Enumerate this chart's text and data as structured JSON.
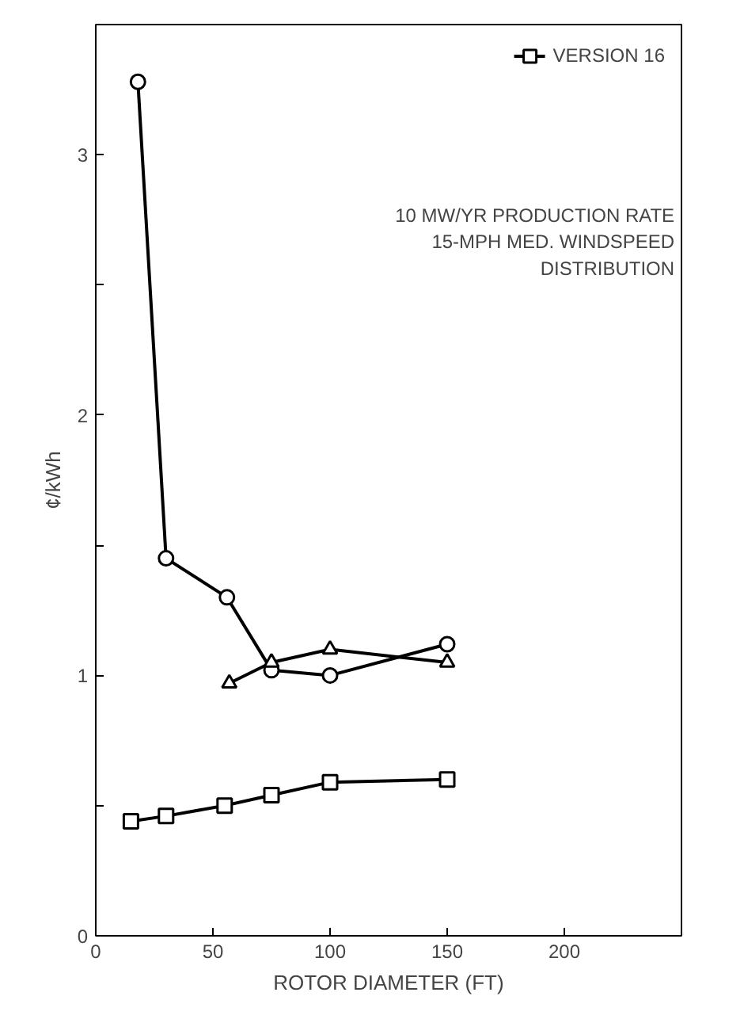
{
  "chart_data": {
    "type": "line",
    "xlabel": "ROTOR DIAMETER (FT)",
    "ylabel": "¢/kWh",
    "xlim": [
      0,
      250
    ],
    "ylim": [
      0,
      3.5
    ],
    "xticks": [
      0,
      50,
      100,
      150,
      200
    ],
    "yticks": [
      0,
      {
        "value": 0.5,
        "label": null
      },
      1,
      {
        "value": 1.5,
        "label": null
      },
      2,
      {
        "value": 2.5,
        "label": null
      },
      3
    ],
    "grid": false,
    "legend": "top right",
    "line_style": "solid",
    "series": [
      {
        "color": "#000000",
        "marker": "circle",
        "x": [
          18,
          30,
          56,
          75,
          100,
          150
        ],
        "values": [
          3.28,
          1.45,
          1.3,
          1.02,
          1.0,
          1.12
        ]
      },
      {
        "color": "#000000",
        "marker": "triangle",
        "x": [
          57,
          75,
          100,
          150
        ],
        "values": [
          0.97,
          1.05,
          1.1,
          1.05
        ]
      },
      {
        "name": "VERSION 16",
        "color": "#000000",
        "marker": "square",
        "x": [
          15,
          30,
          55,
          75,
          100,
          150
        ],
        "values": [
          0.44,
          0.46,
          0.5,
          0.54,
          0.59,
          0.6
        ]
      }
    ],
    "annotations": [
      {
        "text": "10 MW/YR PRODUCTION RATE\n15-MPH MED. WINDSPEED\nDISTRIBUTION"
      }
    ]
  }
}
